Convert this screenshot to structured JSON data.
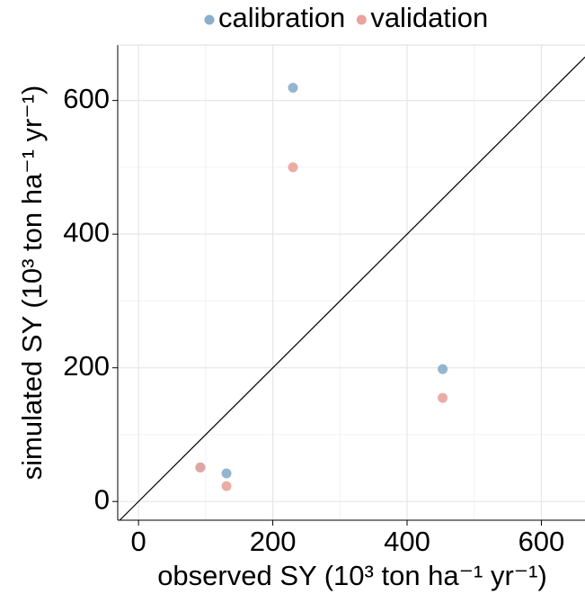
{
  "chart_data": {
    "type": "scatter",
    "xlabel": "observed SY (10³ ton ha⁻¹ yr⁻¹)",
    "ylabel": "simulated SY (10³ ton ha⁻¹ yr⁻¹)",
    "series": [
      {
        "name": "calibration",
        "color": "#8aaecb",
        "x": [
          92,
          131,
          230,
          453
        ],
        "values": [
          51,
          42,
          619,
          198
        ]
      },
      {
        "name": "validation",
        "color": "#e8a49c",
        "x": [
          92,
          131,
          230,
          453
        ],
        "values": [
          51,
          23,
          500,
          155
        ]
      }
    ],
    "xlim": [
      -31,
      665
    ],
    "ylim": [
      -28,
      683
    ],
    "xticks": [
      0,
      200,
      400,
      600
    ],
    "yticks": [
      0,
      200,
      400,
      600
    ],
    "xminor": [
      100,
      300,
      500
    ],
    "yminor": [
      100,
      300,
      500
    ],
    "grid": true,
    "identity_line": true,
    "legend": "top"
  }
}
